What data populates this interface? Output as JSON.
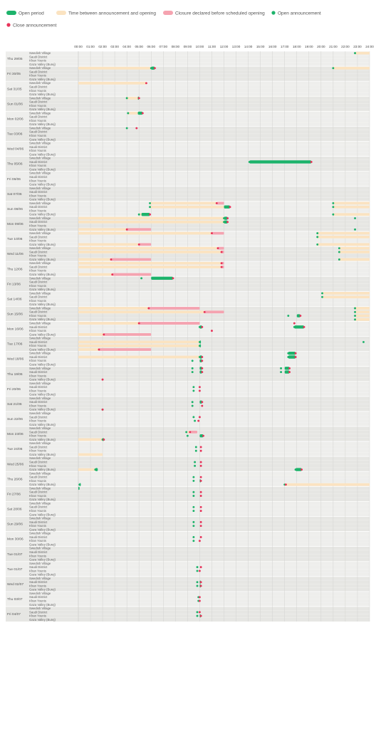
{
  "chart_data": {
    "type": "timeline",
    "legend": [
      {
        "key": "open",
        "label": "Open period",
        "color": "#1db36b",
        "shape": "bar"
      },
      {
        "key": "wait",
        "label": "Time between announcement and opening",
        "color": "#fbe3c1",
        "shape": "bar"
      },
      {
        "key": "closure",
        "label": "Closure declared before scheduled opening",
        "color": "#f5a3b0",
        "shape": "bar"
      },
      {
        "key": "open_ann",
        "label": "Open announcement",
        "color": "#1db36b",
        "shape": "dot"
      },
      {
        "key": "close_ann",
        "label": "Close announcement",
        "color": "#e8335a",
        "shape": "dot"
      }
    ],
    "x_ticks": [
      "00:00",
      "01:00",
      "02:00",
      "03:00",
      "04:00",
      "05:00",
      "06:00",
      "07:00",
      "08:00",
      "09:00",
      "10:00",
      "11:00",
      "12:00",
      "13:00",
      "14:00",
      "15:00",
      "16:00",
      "17:00",
      "18:00",
      "19:00",
      "20:00",
      "21:00",
      "22:00",
      "23:00",
      "24:00"
    ],
    "xlim": [
      0,
      24
    ],
    "locations": [
      "Swedish Village",
      "Saudi District",
      "Khan Younis",
      "Gaza Valley (Burej)"
    ],
    "days": [
      "Thu 29/05",
      "Fri 30/05",
      "Sat 31/05",
      "Sun 01/06",
      "Mon 02/06",
      "Tue 03/06",
      "Wed 04/06",
      "Thu 05/06",
      "Fri 06/06",
      "Sat 07/06",
      "Sun 08/06",
      "Mon 09/06",
      "Tue 10/06",
      "Wed 11/06",
      "Thu 12/06",
      "Fri 13/06",
      "Sat 14/06",
      "Sun 15/06",
      "Mon 16/06",
      "Tue 17/06",
      "Wed 18/06",
      "Thu 19/06",
      "Fri 20/06",
      "Sat 21/06",
      "Sun 22/06",
      "Mon 23/06",
      "Tue 24/06",
      "Wed 25/06",
      "Thu 26/06",
      "Fri 27/06",
      "Sat 28/06",
      "Sun 29/06",
      "Mon 30/06",
      "Tue 01/07",
      "Tue 01/07",
      "Wed 02/07",
      "Thu 03/07",
      "Fri 04/07"
    ],
    "events": [
      {
        "day": 0,
        "loc": 0,
        "wait": [
          22.8,
          24
        ],
        "open_ann": 22.8
      },
      {
        "day": 1,
        "loc": 0,
        "wait": [
          0,
          6
        ],
        "open": [
          6,
          6.3
        ],
        "open_ann": 6,
        "close_ann": 6.3
      },
      {
        "day": 1,
        "loc": 0,
        "wait": [
          21,
          24
        ],
        "open_ann": 21
      },
      {
        "day": 2,
        "loc": 0,
        "wait": [
          0,
          5.6
        ],
        "close_ann": 5.6
      },
      {
        "day": 3,
        "loc": 0,
        "wait": [
          4,
          4.9
        ],
        "open": [
          4.9,
          5
        ],
        "open_ann": 4,
        "close_ann": 5
      },
      {
        "day": 4,
        "loc": 0,
        "wait": [
          4.1,
          4.9
        ],
        "open": [
          4.9,
          5.3
        ],
        "open_ann": 4.1,
        "close_ann": 5.3
      },
      {
        "day": 5,
        "loc": 0,
        "open_ann": 4,
        "close_ann": 4.8
      },
      {
        "day": 7,
        "loc": 1,
        "open": [
          14.1,
          19.2
        ],
        "open_ann": 14.1,
        "close_ann": 19.2
      },
      {
        "day": 10,
        "loc": 0,
        "wait": [
          5.9,
          11.4
        ],
        "closure": [
          11.4,
          12
        ],
        "open_ann": 5.9,
        "close_ann": 11.4
      },
      {
        "day": 10,
        "loc": 0,
        "wait": [
          21,
          24
        ],
        "open_ann": 21
      },
      {
        "day": 10,
        "loc": 1,
        "wait": [
          5.9,
          12
        ],
        "open": [
          12,
          12.5
        ],
        "open_ann": 5.9,
        "close_ann": 12.5
      },
      {
        "day": 10,
        "loc": 1,
        "wait": [
          21,
          24
        ],
        "open_ann": 21
      },
      {
        "day": 10,
        "loc": 3,
        "wait": [
          5,
          5.2
        ],
        "open": [
          5.2,
          5.9
        ],
        "open_ann": 5,
        "close_ann": 5.9
      },
      {
        "day": 10,
        "loc": 3,
        "wait": [
          21,
          24
        ],
        "open_ann": 21
      },
      {
        "day": 11,
        "loc": 0,
        "wait": [
          0,
          12
        ],
        "open": [
          12,
          12.3
        ],
        "open_ann": 12,
        "close_ann": 12.3
      },
      {
        "day": 11,
        "loc": 0,
        "open_ann": 22.8
      },
      {
        "day": 11,
        "loc": 1,
        "wait": [
          0,
          12
        ],
        "open": [
          12,
          12.3
        ],
        "open_ann": 12,
        "close_ann": 12.3
      },
      {
        "day": 11,
        "loc": 3,
        "wait": [
          0,
          4
        ],
        "closure": [
          4,
          6
        ],
        "close_ann": 4
      },
      {
        "day": 11,
        "loc": 3,
        "open_ann": 22.8
      },
      {
        "day": 12,
        "loc": 0,
        "wait": [
          0,
          11
        ],
        "closure": [
          11,
          12
        ],
        "close_ann": 11
      },
      {
        "day": 12,
        "loc": 0,
        "wait": [
          19.7,
          24
        ],
        "open_ann": 19.7
      },
      {
        "day": 12,
        "loc": 1,
        "wait": [
          19.7,
          24
        ],
        "open_ann": 19.7
      },
      {
        "day": 12,
        "loc": 3,
        "wait": [
          0,
          5
        ],
        "closure": [
          5,
          6
        ],
        "close_ann": 5
      },
      {
        "day": 12,
        "loc": 3,
        "wait": [
          19.7,
          24
        ],
        "open_ann": 19.7
      },
      {
        "day": 13,
        "loc": 0,
        "wait": [
          0,
          11.5
        ],
        "closure": [
          11.5,
          12
        ],
        "close_ann": 11.5
      },
      {
        "day": 13,
        "loc": 0,
        "wait": [
          21.5,
          24
        ],
        "open_ann": 21.5
      },
      {
        "day": 13,
        "loc": 1,
        "wait": [
          0,
          11.8
        ],
        "closure": [
          11.8,
          12
        ],
        "close_ann": 11.8
      },
      {
        "day": 13,
        "loc": 1,
        "wait": [
          21.5,
          24
        ],
        "open_ann": 21.5
      },
      {
        "day": 13,
        "loc": 3,
        "wait": [
          0,
          2.7
        ],
        "closure": [
          2.7,
          6
        ],
        "close_ann": 2.7
      },
      {
        "day": 13,
        "loc": 3,
        "wait": [
          21.5,
          24
        ],
        "open_ann": 21.5
      },
      {
        "day": 14,
        "loc": 0,
        "wait": [
          0,
          11.8
        ],
        "closure": [
          11.8,
          12
        ],
        "close_ann": 11.8
      },
      {
        "day": 14,
        "loc": 1,
        "wait": [
          0,
          11.8
        ],
        "closure": [
          11.8,
          12
        ],
        "close_ann": 11.8
      },
      {
        "day": 14,
        "loc": 3,
        "wait": [
          0,
          2.8
        ],
        "closure": [
          2.8,
          6
        ],
        "close_ann": 2.8
      },
      {
        "day": 15,
        "loc": 0,
        "open": [
          6,
          7.8
        ],
        "open_ann": 5.2,
        "close_ann": 7.8
      },
      {
        "day": 16,
        "loc": 0,
        "wait": [
          20.1,
          24
        ],
        "open_ann": 20.1
      },
      {
        "day": 16,
        "loc": 1,
        "wait": [
          20.1,
          24
        ],
        "open_ann": 20.1
      },
      {
        "day": 17,
        "loc": 0,
        "wait": [
          0,
          5.8
        ],
        "closure": [
          5.8,
          10
        ],
        "close_ann": 5.8
      },
      {
        "day": 17,
        "loc": 0,
        "wait": [
          22.8,
          24
        ],
        "open_ann": 22.8
      },
      {
        "day": 17,
        "loc": 1,
        "wait": [
          0,
          10.4
        ],
        "closure": [
          10.4,
          12
        ],
        "close_ann": 10.4
      },
      {
        "day": 17,
        "loc": 1,
        "wait": [
          22.8,
          24
        ],
        "open_ann": 22.8
      },
      {
        "day": 17,
        "loc": 2,
        "open": [
          18,
          18.3
        ],
        "open_ann": 17.3,
        "close_ann": 18.3
      },
      {
        "day": 17,
        "loc": 2,
        "wait": [
          22.8,
          24
        ],
        "open_ann": 22.8
      },
      {
        "day": 17,
        "loc": 3,
        "wait": [
          22.8,
          24
        ],
        "open_ann": 22.8
      },
      {
        "day": 18,
        "loc": 0,
        "wait": [
          0,
          5
        ],
        "closure": [
          5,
          10
        ],
        "close_ann": 5
      },
      {
        "day": 18,
        "loc": 0,
        "close_ann": 17.8
      },
      {
        "day": 18,
        "loc": 1,
        "open": [
          10,
          10.2
        ],
        "open_ann": 10,
        "close_ann": 10.2
      },
      {
        "day": 18,
        "loc": 1,
        "open": [
          17.8,
          18.6
        ],
        "open_ann": 17.8,
        "close_ann": 18.6
      },
      {
        "day": 18,
        "loc": 2,
        "close_ann": 11
      },
      {
        "day": 18,
        "loc": 3,
        "wait": [
          0,
          2.1
        ],
        "closure": [
          2.1,
          6
        ],
        "close_ann": 2.1
      },
      {
        "day": 19,
        "loc": 1,
        "wait": [
          0,
          10
        ],
        "open": [
          10,
          10.1
        ],
        "open_ann": 10
      },
      {
        "day": 19,
        "loc": 1,
        "open_ann": 23.5
      },
      {
        "day": 19,
        "loc": 2,
        "wait": [
          0,
          10
        ],
        "open": [
          10,
          10.1
        ],
        "open_ann": 10
      },
      {
        "day": 19,
        "loc": 3,
        "wait": [
          0,
          1.7
        ],
        "closure": [
          1.7,
          6
        ],
        "close_ann": 1.7
      },
      {
        "day": 20,
        "loc": 0,
        "open": [
          17.3,
          17.9
        ],
        "open_ann": 17.3,
        "close_ann": 17.9
      },
      {
        "day": 20,
        "loc": 1,
        "wait": [
          0,
          10
        ],
        "open": [
          10,
          10.2
        ],
        "open_ann": 10,
        "close_ann": 10.2
      },
      {
        "day": 20,
        "loc": 1,
        "open": [
          17.3,
          17.9
        ],
        "open_ann": 17.3,
        "close_ann": 17.9
      },
      {
        "day": 20,
        "loc": 2,
        "open": [
          10,
          10.2
        ],
        "open_ann": 9.4,
        "close_ann": 10.2
      },
      {
        "day": 21,
        "loc": 0,
        "open": [
          10,
          10.2
        ],
        "open_ann": 9.4,
        "close_ann": 10.2
      },
      {
        "day": 21,
        "loc": 0,
        "open": [
          17,
          17.4
        ],
        "open_ann": 16.7,
        "close_ann": 17.4
      },
      {
        "day": 21,
        "loc": 1,
        "open": [
          10,
          10.2
        ],
        "open_ann": 9.4,
        "close_ann": 10.2
      },
      {
        "day": 21,
        "loc": 1,
        "open": [
          17,
          17.4
        ],
        "open_ann": 16.7,
        "close_ann": 17.4
      },
      {
        "day": 21,
        "loc": 3,
        "close_ann": 2
      },
      {
        "day": 22,
        "loc": 1,
        "open_ann": 9.5,
        "close_ann": 10
      },
      {
        "day": 22,
        "loc": 2,
        "open_ann": 9.5,
        "close_ann": 10
      },
      {
        "day": 23,
        "loc": 1,
        "open": [
          10,
          10.2
        ],
        "open_ann": 9.4,
        "close_ann": 10.2
      },
      {
        "day": 23,
        "loc": 2,
        "open_ann": 9.4,
        "close_ann": 10.2
      },
      {
        "day": 23,
        "loc": 3,
        "open_ann": 2,
        "close_ann": 2
      },
      {
        "day": 24,
        "loc": 1,
        "open_ann": 9.5,
        "close_ann": 10
      },
      {
        "day": 24,
        "loc": 2,
        "open_ann": 9.6,
        "close_ann": 9.9
      },
      {
        "day": 25,
        "loc": 1,
        "wait": [
          9,
          9.2
        ],
        "closure": [
          9.2,
          9.8
        ],
        "open_ann": 8.9,
        "close_ann": 9.2
      },
      {
        "day": 25,
        "loc": 2,
        "open": [
          10,
          10.3
        ],
        "open_ann": 9,
        "close_ann": 10.3
      },
      {
        "day": 25,
        "loc": 3,
        "wait": [
          0,
          2
        ],
        "open": [
          2,
          2.1
        ],
        "open_ann": 2,
        "close_ann": 2.1
      },
      {
        "day": 26,
        "loc": 1,
        "open_ann": 9.7,
        "close_ann": 10.1
      },
      {
        "day": 26,
        "loc": 2,
        "open_ann": 9.7,
        "close_ann": 10.1
      },
      {
        "day": 26,
        "loc": 3,
        "wait": [
          0,
          2
        ]
      },
      {
        "day": 27,
        "loc": 1,
        "open_ann": 9.6,
        "close_ann": 10.1
      },
      {
        "day": 27,
        "loc": 2,
        "open_ann": 9.6,
        "close_ann": 10.1
      },
      {
        "day": 27,
        "loc": 3,
        "wait": [
          0,
          1.4
        ],
        "open": [
          1.4,
          1.6
        ],
        "open_ann": 1.4
      },
      {
        "day": 27,
        "loc": 3,
        "open": [
          17.9,
          18.4
        ],
        "open_ann": 17.9,
        "close_ann": 18.4
      },
      {
        "day": 28,
        "loc": 1,
        "open_ann": 9.5,
        "close_ann": 10.1
      },
      {
        "day": 28,
        "loc": 2,
        "open": [
          10,
          10.1
        ],
        "open_ann": 9.5,
        "close_ann": 10.1
      },
      {
        "day": 28,
        "loc": 3,
        "open": [
          0.1,
          0.2
        ],
        "open_ann": 0.1
      },
      {
        "day": 28,
        "loc": 3,
        "wait": [
          17,
          24
        ],
        "open_ann": 17,
        "close_ann": 17.1
      },
      {
        "day": 29,
        "loc": 0,
        "open": [
          0,
          0.1
        ]
      },
      {
        "day": 29,
        "loc": 1,
        "open_ann": 9.5,
        "close_ann": 10.1
      },
      {
        "day": 29,
        "loc": 2,
        "open_ann": 9.5,
        "close_ann": 10.1
      },
      {
        "day": 30,
        "loc": 1,
        "open_ann": 9.5,
        "close_ann": 10.1
      },
      {
        "day": 30,
        "loc": 2,
        "open_ann": 9.5,
        "close_ann": 10.1
      },
      {
        "day": 31,
        "loc": 1,
        "open_ann": 9.5,
        "close_ann": 10.1
      },
      {
        "day": 31,
        "loc": 2,
        "open_ann": 9.5,
        "close_ann": 10.1
      },
      {
        "day": 32,
        "loc": 1,
        "open_ann": 9.5,
        "close_ann": 10.1
      },
      {
        "day": 32,
        "loc": 2,
        "open_ann": 9.5,
        "close_ann": 10
      },
      {
        "day": 34,
        "loc": 1,
        "open_ann": 9.8,
        "close_ann": 10.1
      },
      {
        "day": 34,
        "loc": 2,
        "open_ann": 9.8,
        "close_ann": 10
      },
      {
        "day": 35,
        "loc": 1,
        "open": [
          10,
          10.1
        ],
        "open_ann": 9.8,
        "close_ann": 10.1
      },
      {
        "day": 35,
        "loc": 2,
        "open": [
          10,
          10.1
        ],
        "open_ann": 9.8,
        "close_ann": 10.1
      },
      {
        "day": 36,
        "loc": 1,
        "open_ann": 9.9,
        "close_ann": 10
      },
      {
        "day": 36,
        "loc": 2,
        "open_ann": 9.9,
        "close_ann": 10
      },
      {
        "day": 37,
        "loc": 1,
        "open_ann": 9.8,
        "close_ann": 10
      },
      {
        "day": 37,
        "loc": 2,
        "open": [
          10,
          10.1
        ],
        "open_ann": 9.8,
        "close_ann": 10.1
      }
    ]
  }
}
